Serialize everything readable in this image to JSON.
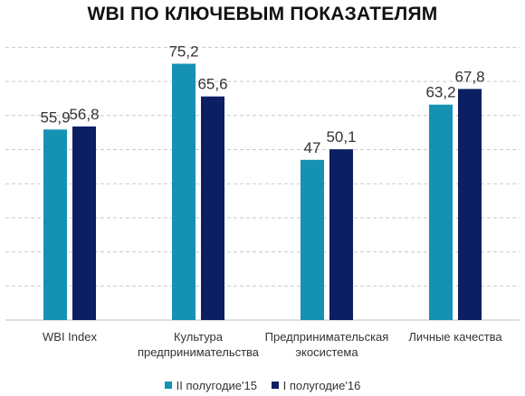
{
  "chart_data": {
    "type": "bar",
    "title": "WBI ПО КЛЮЧЕВЫМ ПОКАЗАТЕЛЯМ",
    "categories": [
      "WBI Index",
      "Культура\nпредпринимательства",
      "Предпринимательская\nэкосистема",
      "Личные качества"
    ],
    "series": [
      {
        "name": "II полугодие'15",
        "color": "#1592b3",
        "values": [
          55.9,
          75.2,
          47,
          63.2
        ],
        "labels": [
          "55,9",
          "75,2",
          "47",
          "63,2"
        ]
      },
      {
        "name": "I полугодие'16",
        "color": "#0c1f63",
        "values": [
          56.8,
          65.6,
          50.1,
          67.8
        ],
        "labels": [
          "56,8",
          "65,6",
          "50,1",
          "67,8"
        ]
      }
    ],
    "ylim": [
      0,
      85
    ],
    "grid": true,
    "legend": "bottom"
  }
}
